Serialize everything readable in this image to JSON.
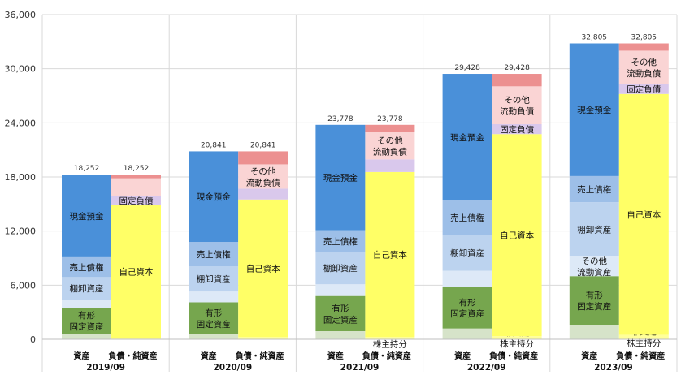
{
  "chart_data": {
    "type": "stacked-bar",
    "title": "",
    "xlabel": "",
    "ylabel": "",
    "ylim": [
      0,
      36000
    ],
    "yticks": [
      "0",
      "6,000",
      "12,000",
      "18,000",
      "24,000",
      "30,000",
      "36,000"
    ],
    "ytick_values": [
      0,
      6000,
      12000,
      18000,
      24000,
      30000,
      36000
    ],
    "grid": true,
    "legend": "none",
    "bar_labels": {
      "assets": "資産",
      "liabilities": "負債・純資産"
    },
    "categories": [
      "2019/09",
      "2020/09",
      "2021/09",
      "2022/09",
      "2023/09"
    ],
    "assets": {
      "segments": [
        {
          "key": "other_fixed",
          "color": "#d6e3c9",
          "label": ""
        },
        {
          "key": "tangible_fixed",
          "color": "#76a64e",
          "label": "有形\n固定資産"
        },
        {
          "key": "other_current",
          "color": "#dde9f7",
          "label": "その他\n流動資産"
        },
        {
          "key": "inventory",
          "color": "#bcd3ef",
          "label": "棚卸資産"
        },
        {
          "key": "receivables",
          "color": "#9dbfe8",
          "label": "売上債権"
        },
        {
          "key": "cash",
          "color": "#4a90d9",
          "label": "現金預金"
        }
      ],
      "values": [
        [
          600,
          2900,
          900,
          2500,
          2200,
          9152
        ],
        [
          600,
          3500,
          1200,
          2800,
          2700,
          10041
        ],
        [
          900,
          3900,
          1300,
          3600,
          2400,
          11678
        ],
        [
          1200,
          4600,
          1800,
          4000,
          3800,
          14028
        ],
        [
          1600,
          5400,
          2200,
          6000,
          2900,
          14705
        ]
      ],
      "shown_labels": [
        [
          "",
          "有形\n固定資産",
          "",
          "棚卸資産",
          "売上債権",
          "現金預金"
        ],
        [
          "",
          "有形\n固定資産",
          "",
          "棚卸資産",
          "売上債権",
          "現金預金"
        ],
        [
          "",
          "有形\n固定資産",
          "",
          "棚卸資産",
          "売上債権",
          "現金預金"
        ],
        [
          "",
          "有形\n固定資産",
          "",
          "棚卸資産",
          "売上債権",
          "現金預金"
        ],
        [
          "",
          "有形\n固定資産",
          "その他\n流動資産",
          "棚卸資産",
          "売上債権",
          "現金預金"
        ]
      ]
    },
    "liabilities": {
      "segments": [
        {
          "key": "noncontrolling",
          "color": "#ffff99",
          "label": "非支配\n株主持分"
        },
        {
          "key": "equity",
          "color": "#ffff66",
          "label": "自己資本"
        },
        {
          "key": "fixed_liab",
          "color": "#d9c8ec",
          "label": "固定負債"
        },
        {
          "key": "other_current_liab",
          "color": "#fad4d4",
          "label": "その他\n流動負債"
        },
        {
          "key": "payables",
          "color": "#ec9090",
          "label": ""
        }
      ],
      "values": [
        [
          150,
          14750,
          1000,
          1950,
          402
        ],
        [
          250,
          15250,
          1200,
          2700,
          1441
        ],
        [
          250,
          18300,
          1400,
          3000,
          828
        ],
        [
          350,
          22400,
          1100,
          4200,
          1378
        ],
        [
          500,
          26700,
          1100,
          3700,
          805
        ]
      ],
      "shown_labels": [
        [
          "",
          "自己資本",
          "固定負債",
          "",
          ""
        ],
        [
          "",
          "自己資本",
          "",
          "その他\n流動負債",
          ""
        ],
        [
          "非支配\n株主持分",
          "自己資本",
          "",
          "その他\n流動負債",
          ""
        ],
        [
          "非支配\n株主持分",
          "自己資本",
          "固定負債",
          "その他\n流動負債",
          ""
        ],
        [
          "非支配\n株主持分",
          "自己資本",
          "固定負債",
          "その他\n流動負債",
          ""
        ]
      ]
    },
    "totals": [
      "18,252",
      "20,841",
      "23,778",
      "29,428",
      "32,805"
    ]
  }
}
